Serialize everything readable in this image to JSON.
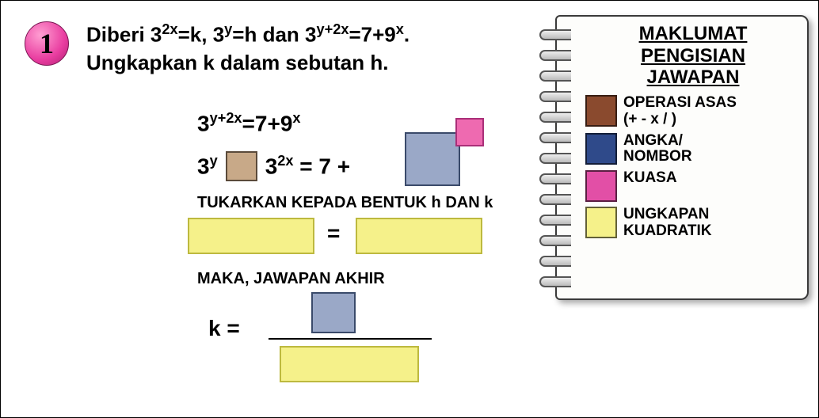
{
  "badge": {
    "number": "1"
  },
  "question": {
    "line1_html": "Diberi 3<sup>2x</sup>=k, 3<sup>y</sup>=h dan 3<sup>y+2x</sup>=7+9<sup>x</sup>.",
    "line2": "Ungkapkan k dalam sebutan h."
  },
  "work": {
    "eq1_html": "3<sup>y+2x</sup>=7+9<sup>x</sup>",
    "eq2_left_html": "3<sup>y</sup>",
    "eq2_mid_html": "3<sup>2x</sup> = 7 +",
    "instr1": "TUKARKAN KEPADA BENTUK h DAN k",
    "eq_mid_sign": "=",
    "instr2": "MAKA, JAWAPAN AKHIR",
    "k_equals": "k ="
  },
  "colors": {
    "operasi_asas": "#8a4a2e",
    "angka_nombor": "#2f4a8a",
    "kuasa": "#e24fa6",
    "ungkapan_kuadratik": "#f5f18a",
    "blank_yellow": "#f5f18a",
    "blue_box": "#9aa8c7",
    "pink_box": "#ee6ab0",
    "brown_box": "#c8a988"
  },
  "notebook": {
    "title_l1": "MAKLUMAT",
    "title_l2": "PENGISIAN",
    "title_l3": "JAWAPAN",
    "legend": [
      {
        "label_l1": "OPERASI ASAS",
        "label_l2": "(+ - x / )",
        "color": "#8a4a2e"
      },
      {
        "label_l1": "ANGKA/",
        "label_l2": "NOMBOR",
        "color": "#2f4a8a"
      },
      {
        "label_l1": "KUASA",
        "label_l2": "",
        "color": "#e24fa6"
      },
      {
        "label_l1": "UNGKAPAN",
        "label_l2": "KUADRATIK",
        "color": "#f5f18a"
      }
    ]
  }
}
